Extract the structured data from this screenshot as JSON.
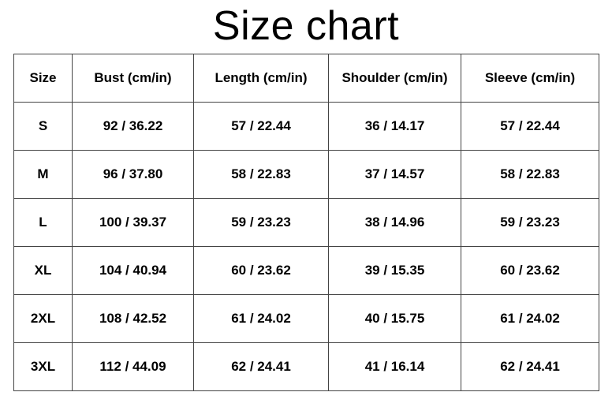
{
  "title": "Size chart",
  "table": {
    "header": [
      "Size",
      "Bust (cm/in)",
      "Length (cm/in)",
      "Shoulder (cm/in)",
      "Sleeve (cm/in)"
    ],
    "rows": [
      [
        "S",
        "92 / 36.22",
        "57 / 22.44",
        "36 / 14.17",
        "57 / 22.44"
      ],
      [
        "M",
        "96 / 37.80",
        "58 / 22.83",
        "37 / 14.57",
        "58 / 22.83"
      ],
      [
        "L",
        "100 / 39.37",
        "59 / 23.23",
        "38 / 14.96",
        "59 / 23.23"
      ],
      [
        "XL",
        "104 / 40.94",
        "60 / 23.62",
        "39 / 15.35",
        "60 / 23.62"
      ],
      [
        "2XL",
        "108 / 42.52",
        "61 / 24.02",
        "40 / 15.75",
        "61 / 24.02"
      ],
      [
        "3XL",
        "112 / 44.09",
        "62 / 24.41",
        "41 / 16.14",
        "62 / 24.41"
      ]
    ]
  }
}
